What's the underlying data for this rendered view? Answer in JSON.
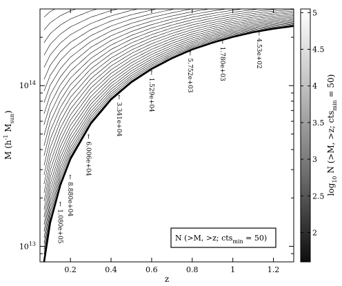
{
  "chart_data": {
    "type": "heatmap",
    "xlabel": "z",
    "ylabel": {
      "prefix": "M (h",
      "sup": "-1",
      "mid": " M",
      "sub": "sun",
      "suffix": ")"
    },
    "x_range": [
      0.05,
      1.3
    ],
    "y_range": [
      8000000000000,
      300000000000000
    ],
    "y_scale": "log",
    "x_ticks": [
      "0.2",
      "0.4",
      "0.6",
      "0.8",
      "1",
      "1.2"
    ],
    "x_tick_values": [
      0.2,
      0.4,
      0.6,
      0.8,
      1.0,
      1.2
    ],
    "y_tick_labels": [
      {
        "base": "10",
        "exp": "13"
      },
      {
        "base": "10",
        "exp": "14"
      }
    ],
    "y_tick_values": [
      10000000000000,
      100000000000000
    ],
    "colorbar": {
      "range": [
        1.6,
        5.05
      ],
      "ticks": [
        "2",
        "2.5",
        "3",
        "3.5",
        "4",
        "4.5",
        "5"
      ],
      "tick_values": [
        2,
        2.5,
        3,
        3.5,
        4,
        4.5,
        5
      ],
      "label": {
        "prefix": "log",
        "sub": "10",
        "mid": " N (>M, >z; cts",
        "sub2": "min",
        "suffix": " = 50)"
      }
    },
    "boundary_curve": [
      {
        "z": 0.07,
        "m": 8000000000000
      },
      {
        "z": 0.1,
        "m": 14000000000000
      },
      {
        "z": 0.15,
        "m": 24000000000000
      },
      {
        "z": 0.2,
        "m": 35000000000000
      },
      {
        "z": 0.3,
        "m": 58000000000000
      },
      {
        "z": 0.4,
        "m": 82000000000000
      },
      {
        "z": 0.5,
        "m": 105000000000000
      },
      {
        "z": 0.6,
        "m": 127000000000000
      },
      {
        "z": 0.7,
        "m": 148000000000000
      },
      {
        "z": 0.8,
        "m": 168000000000000
      },
      {
        "z": 0.9,
        "m": 185000000000000
      },
      {
        "z": 1.0,
        "m": 201000000000000
      },
      {
        "z": 1.1,
        "m": 215000000000000
      },
      {
        "z": 1.2,
        "m": 226000000000000
      },
      {
        "z": 1.3,
        "m": 235000000000000
      }
    ],
    "annotations": [
      {
        "text": "1.080e+05",
        "z": 0.15,
        "m": 19000000000000
      },
      {
        "text": "8.880e+04",
        "z": 0.2,
        "m": 28000000000000
      },
      {
        "text": "6.006e+04",
        "z": 0.29,
        "m": 50000000000000
      },
      {
        "text": "3.341e+04",
        "z": 0.44,
        "m": 88000000000000
      },
      {
        "text": "1.529e+04",
        "z": 0.6,
        "m": 125000000000000
      },
      {
        "text": "5.752e+03",
        "z": 0.79,
        "m": 165000000000000
      },
      {
        "text": "1.780e+03",
        "z": 0.95,
        "m": 195000000000000
      },
      {
        "text": "4.53e+02",
        "z": 1.13,
        "m": 220000000000000
      }
    ],
    "legend": {
      "prefix": "N (>M, >z; cts",
      "sub": "min",
      "suffix": " = 50)",
      "placement": "bottom-right"
    }
  }
}
